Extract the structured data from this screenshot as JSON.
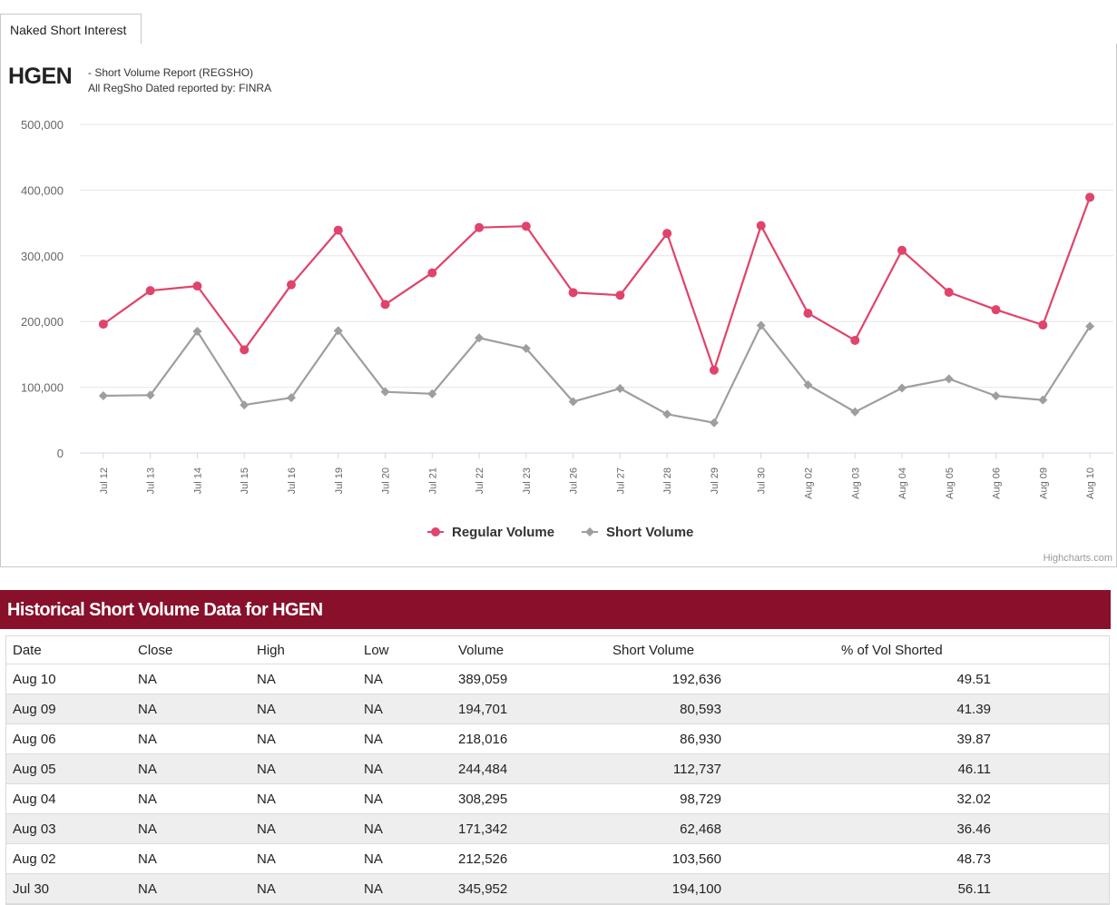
{
  "tab": {
    "label": "Naked Short Interest"
  },
  "header": {
    "ticker": "HGEN",
    "report_title": "- Short Volume Report  (REGSHO)",
    "report_source": "All RegSho Dated reported by: FINRA"
  },
  "chart_data": {
    "type": "line",
    "title": "",
    "xlabel": "",
    "ylabel": "",
    "ylim": [
      0,
      500000
    ],
    "y_ticks": [
      "0",
      "100,000",
      "200,000",
      "300,000",
      "400,000",
      "500,000"
    ],
    "y_tick_values": [
      0,
      100000,
      200000,
      300000,
      400000,
      500000
    ],
    "categories": [
      "Jul 12",
      "Jul 13",
      "Jul 14",
      "Jul 15",
      "Jul 16",
      "Jul 19",
      "Jul 20",
      "Jul 21",
      "Jul 22",
      "Jul 23",
      "Jul 26",
      "Jul 27",
      "Jul 28",
      "Jul 29",
      "Jul 30",
      "Aug 02",
      "Aug 03",
      "Aug 04",
      "Aug 05",
      "Aug 06",
      "Aug 09",
      "Aug 10"
    ],
    "series": [
      {
        "name": "Regular Volume",
        "color": "#e0436b",
        "marker": "circle",
        "values": [
          196000,
          247000,
          254000,
          157000,
          256000,
          339000,
          226000,
          274000,
          343000,
          345000,
          244000,
          240000,
          334000,
          126000,
          345952,
          212526,
          171342,
          308295,
          244484,
          218016,
          194701,
          389059
        ]
      },
      {
        "name": "Short Volume",
        "color": "#9e9e9e",
        "marker": "diamond",
        "values": [
          87000,
          88000,
          185000,
          73000,
          84000,
          186000,
          93000,
          90000,
          175000,
          159000,
          78000,
          98000,
          59000,
          46000,
          194100,
          103560,
          62468,
          98729,
          112737,
          86930,
          80593,
          192636
        ]
      }
    ],
    "legend_position": "bottom-center",
    "grid": true,
    "credits": "Highcharts.com"
  },
  "table": {
    "title": "Historical Short Volume Data for HGEN",
    "headers": [
      "Date",
      "Close",
      "High",
      "Low",
      "Volume",
      "Short Volume",
      "% of Vol Shorted"
    ],
    "rows": [
      [
        "Aug 10",
        "NA",
        "NA",
        "NA",
        "389,059",
        "192,636",
        "49.51"
      ],
      [
        "Aug 09",
        "NA",
        "NA",
        "NA",
        "194,701",
        "80,593",
        "41.39"
      ],
      [
        "Aug 06",
        "NA",
        "NA",
        "NA",
        "218,016",
        "86,930",
        "39.87"
      ],
      [
        "Aug 05",
        "NA",
        "NA",
        "NA",
        "244,484",
        "112,737",
        "46.11"
      ],
      [
        "Aug 04",
        "NA",
        "NA",
        "NA",
        "308,295",
        "98,729",
        "32.02"
      ],
      [
        "Aug 03",
        "NA",
        "NA",
        "NA",
        "171,342",
        "62,468",
        "36.46"
      ],
      [
        "Aug 02",
        "NA",
        "NA",
        "NA",
        "212,526",
        "103,560",
        "48.73"
      ],
      [
        "Jul 30",
        "NA",
        "NA",
        "NA",
        "345,952",
        "194,100",
        "56.11"
      ]
    ]
  },
  "colors": {
    "regular": "#e0436b",
    "short": "#9e9e9e",
    "title_bar": "#88102b"
  }
}
